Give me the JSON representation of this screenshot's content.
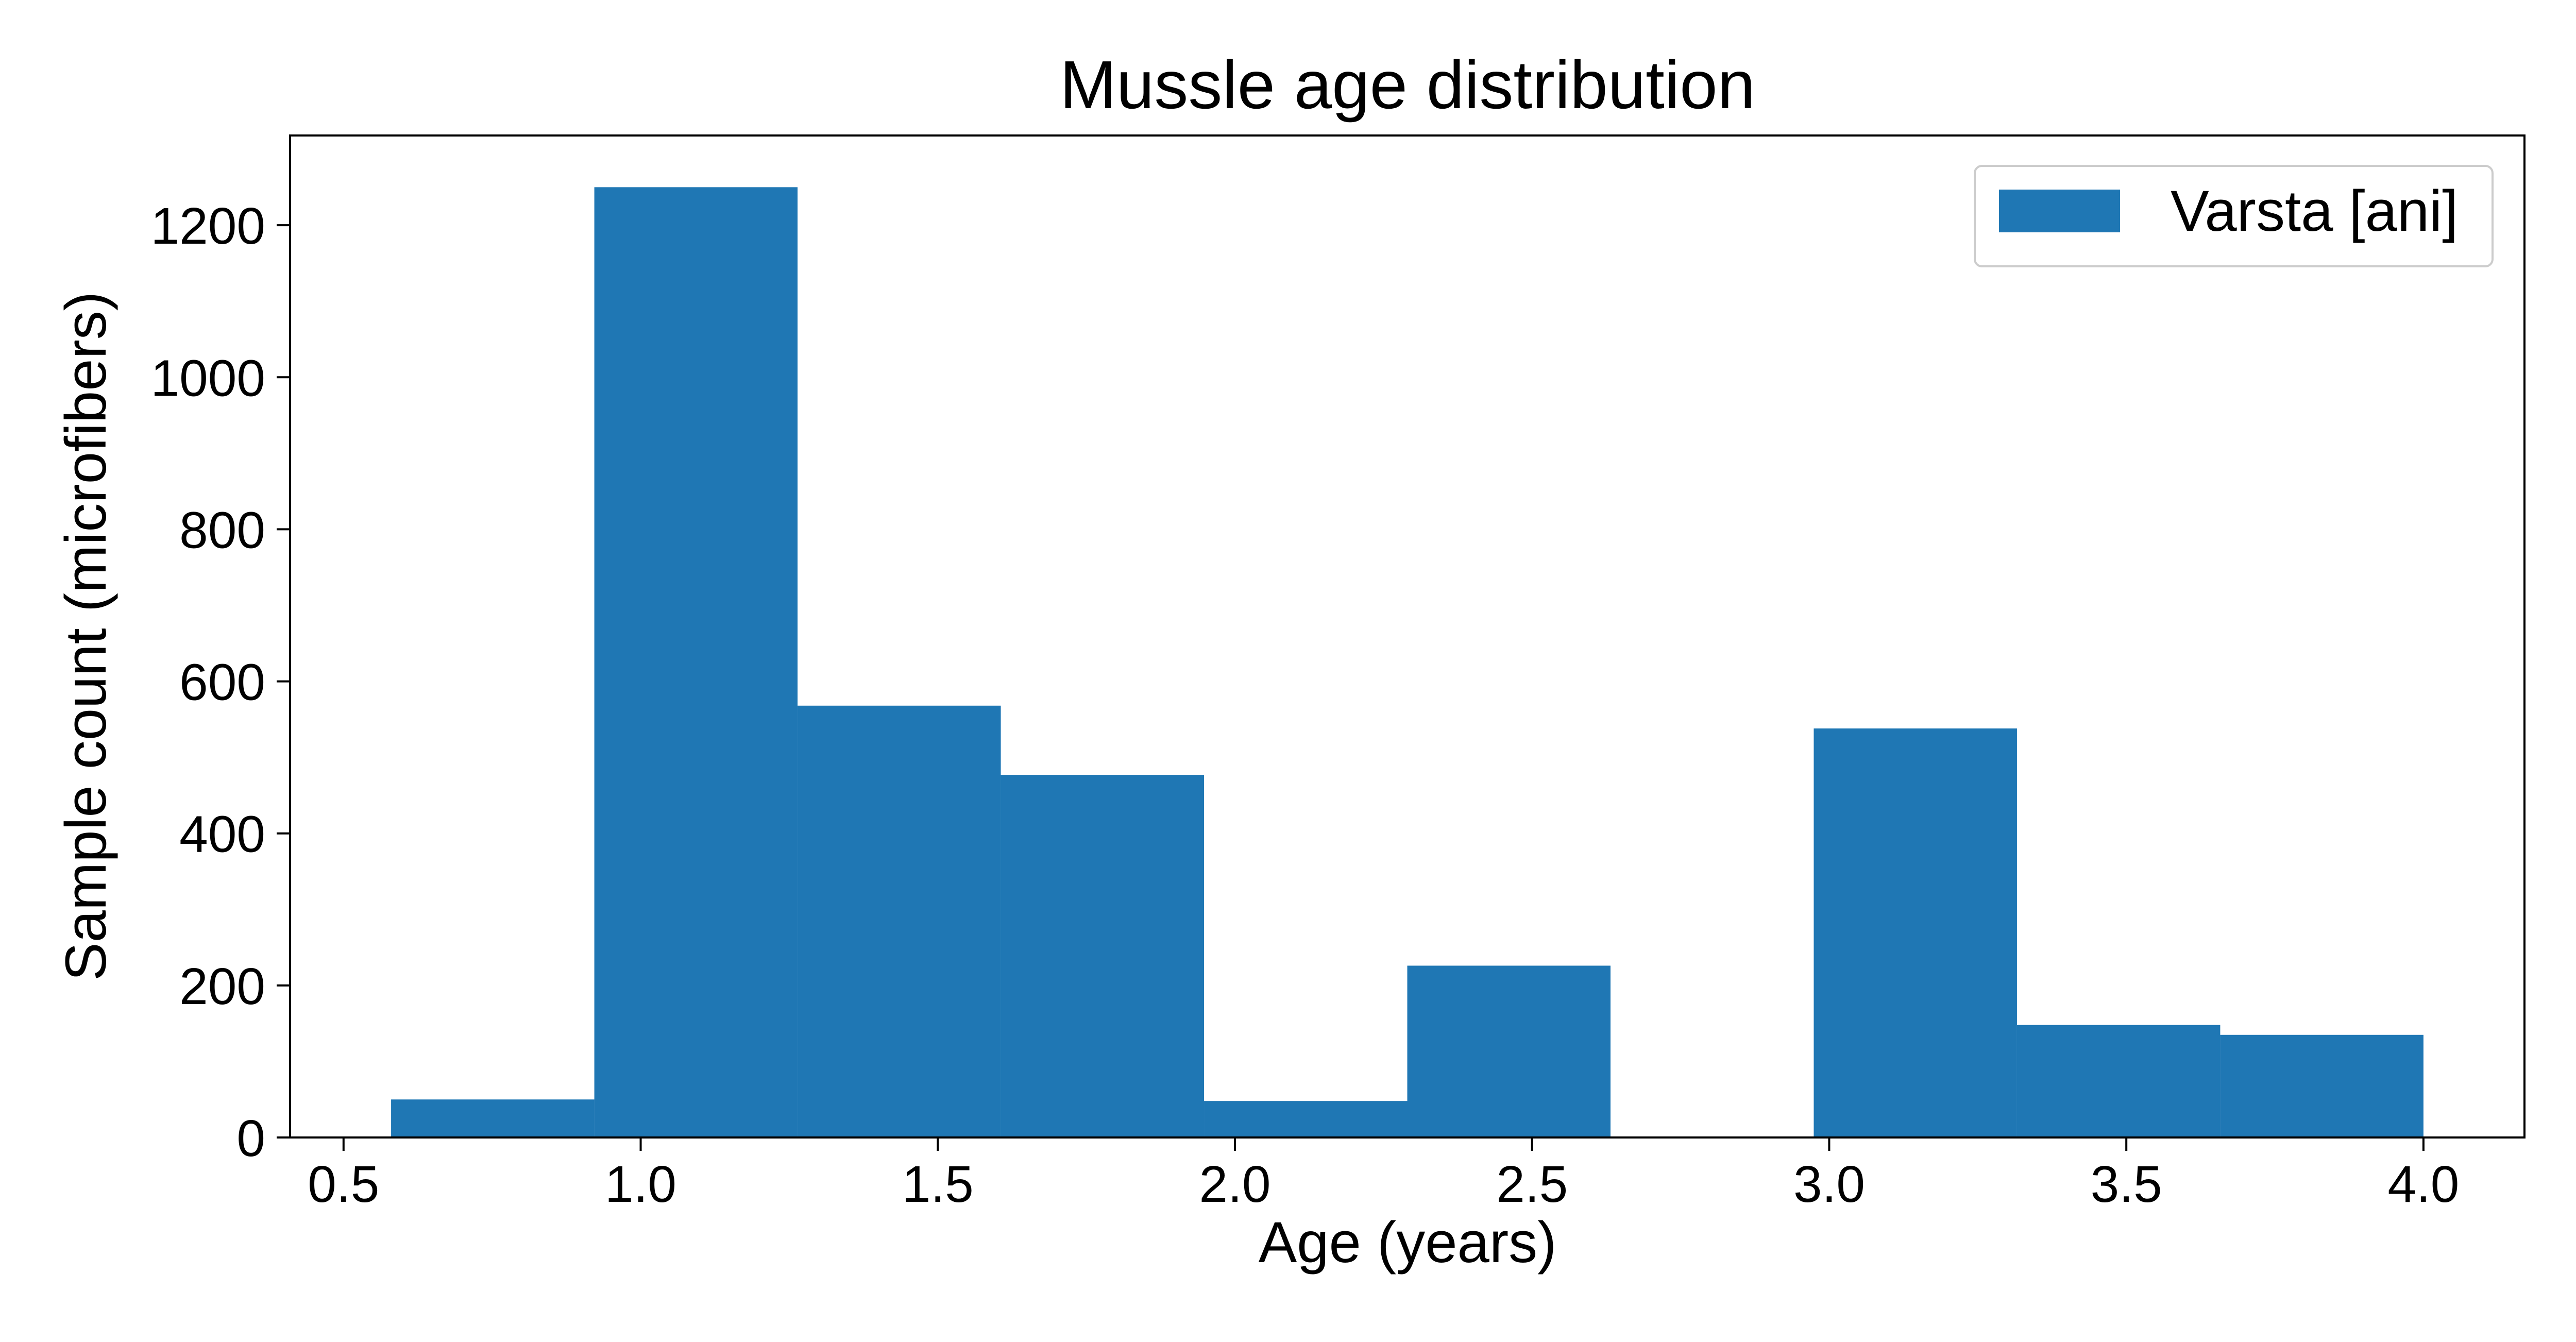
{
  "chart_data": {
    "type": "bar",
    "title": "Mussle age distribution",
    "xlabel": "Age (years)",
    "ylabel": "Sample count (microfibers)",
    "xlim": [
      0.41,
      4.17
    ],
    "ylim": [
      0,
      1318
    ],
    "xticks": [
      "0.5",
      "1.0",
      "1.5",
      "2.0",
      "2.5",
      "3.0",
      "3.5",
      "4.0"
    ],
    "yticks": [
      "0",
      "200",
      "400",
      "600",
      "800",
      "1000",
      "1200"
    ],
    "grid": false,
    "legend_position": "top-right",
    "bin_edges": [
      0.58,
      0.922,
      1.264,
      1.606,
      1.948,
      2.29,
      2.632,
      2.974,
      3.316,
      3.658,
      4.0
    ],
    "series": [
      {
        "name": "Varsta [ani]",
        "color": "#1f77b4",
        "values": [
          50,
          1250,
          568,
          477,
          48,
          226,
          0,
          538,
          148,
          135
        ]
      }
    ]
  }
}
